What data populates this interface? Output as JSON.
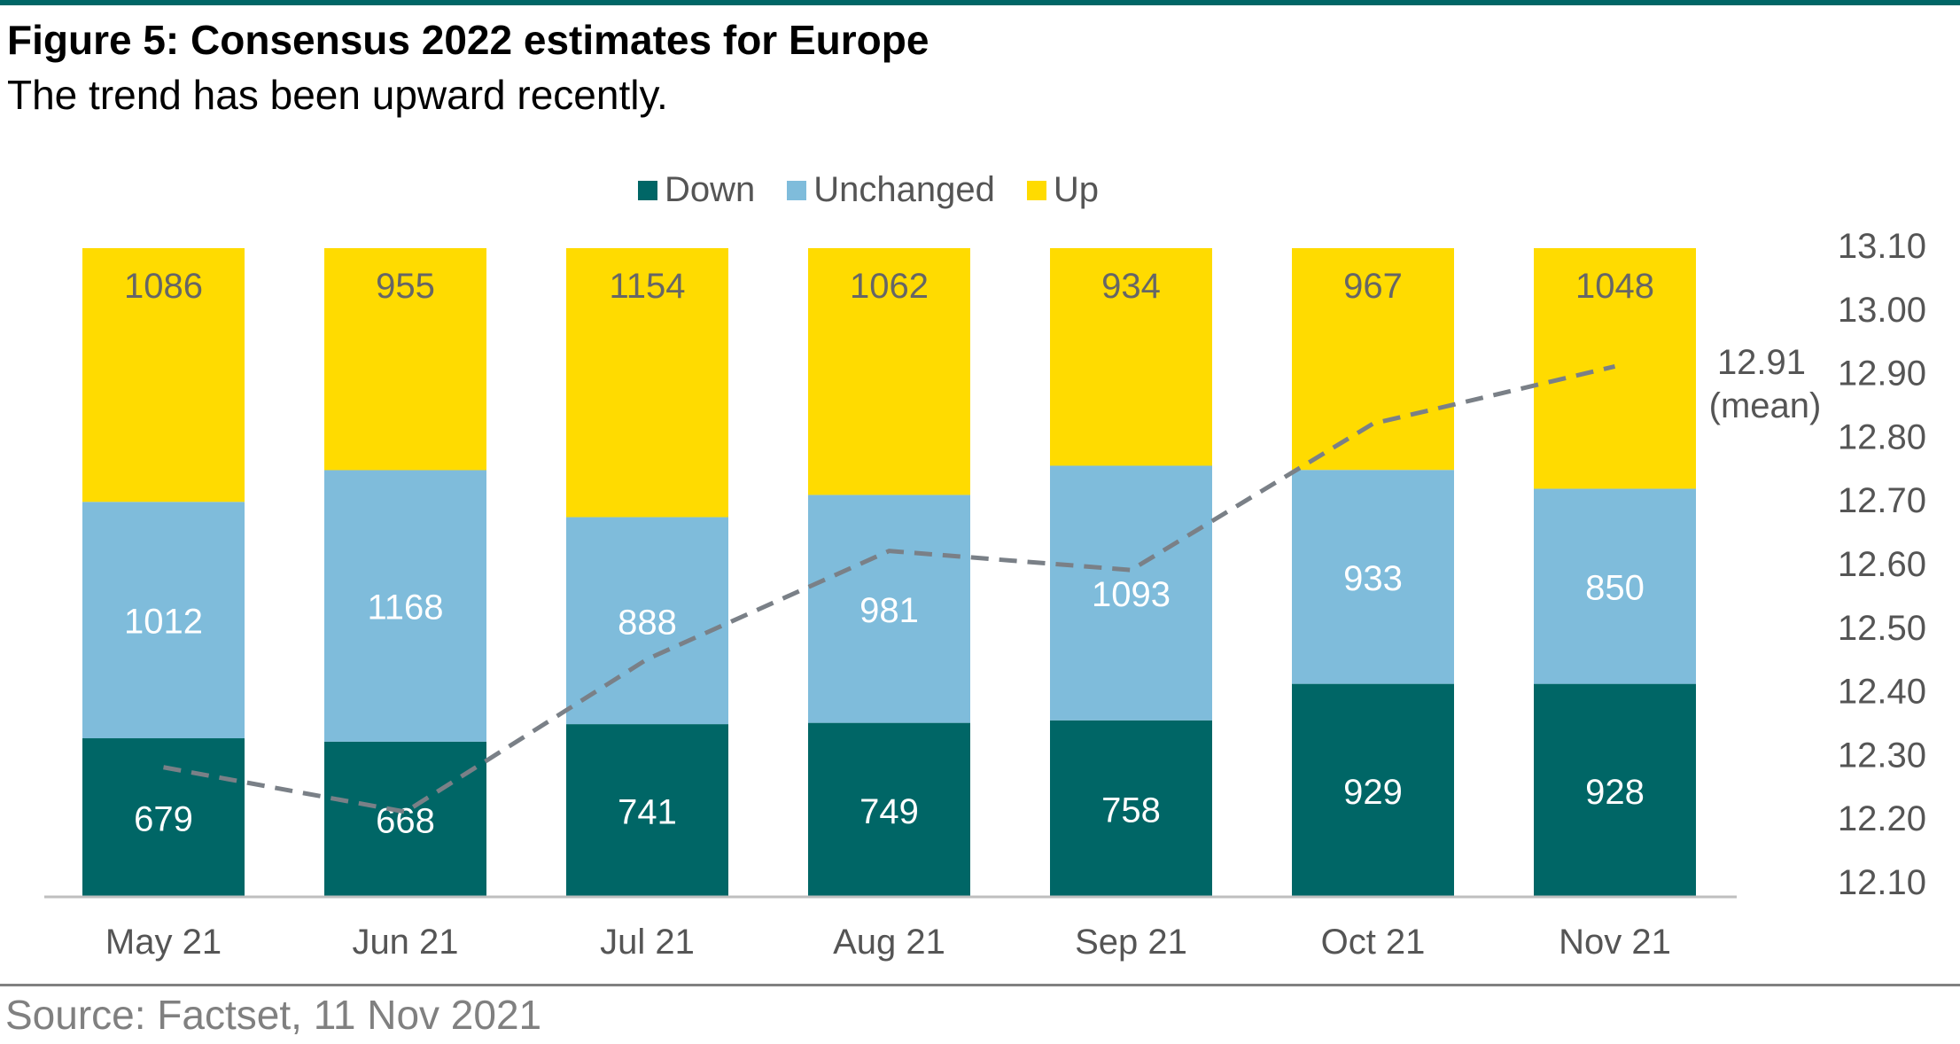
{
  "title": "Figure 5: Consensus 2022 estimates for Europe",
  "subtitle": "The trend has been upward recently.",
  "source": "Source: Factset, 11 Nov 2021",
  "colors": {
    "down": "#006666",
    "unchanged": "#7fbcdb",
    "up": "#ffdb00",
    "mean_line": "#7a8087",
    "rule": "#006666"
  },
  "mean_annotation": {
    "value": "12.91",
    "label": "(mean)"
  },
  "chart_data": {
    "type": "bar",
    "stacked": true,
    "categories": [
      "May 21",
      "Jun 21",
      "Jul 21",
      "Aug 21",
      "Sep 21",
      "Oct 21",
      "Nov 21"
    ],
    "series": [
      {
        "name": "Down",
        "values": [
          679,
          668,
          741,
          749,
          758,
          929,
          928
        ]
      },
      {
        "name": "Unchanged",
        "values": [
          1012,
          1168,
          888,
          981,
          1093,
          933,
          850
        ]
      },
      {
        "name": "Up",
        "values": [
          1086,
          955,
          1154,
          1062,
          934,
          967,
          1048
        ]
      }
    ],
    "line": {
      "name": "mean",
      "axis": "right",
      "values": [
        12.28,
        12.21,
        12.45,
        12.62,
        12.59,
        12.82,
        12.91
      ]
    },
    "y2lim": [
      12.1,
      13.1
    ],
    "y2ticks": [
      "12.10",
      "12.20",
      "12.30",
      "12.40",
      "12.50",
      "12.60",
      "12.70",
      "12.80",
      "12.90",
      "13.00",
      "13.10"
    ],
    "legend": "top-center",
    "grid": false
  }
}
